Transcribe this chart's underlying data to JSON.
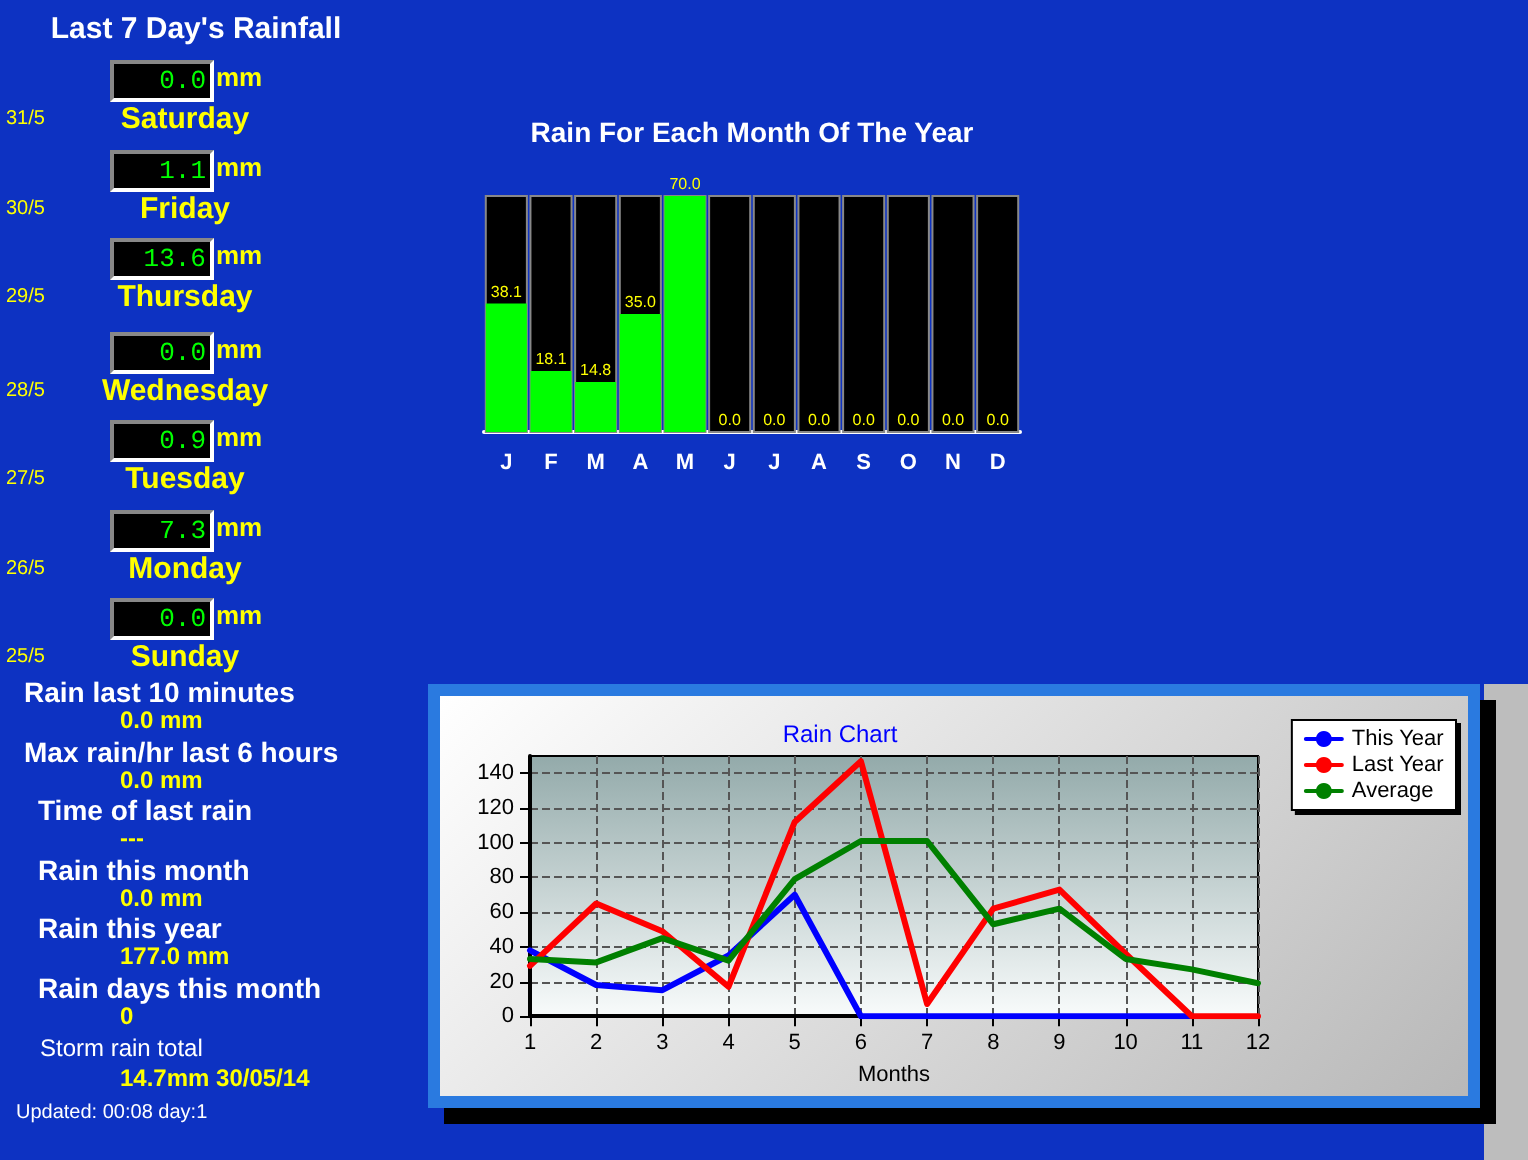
{
  "chart_data": [
    {
      "type": "other",
      "title": "Last 7 Day's Rainfall",
      "categories": [
        "Saturday",
        "Friday",
        "Thursday",
        "Wednesday",
        "Tuesday",
        "Monday",
        "Sunday"
      ],
      "value_labels": [
        "0.0",
        "1.1",
        "13.6",
        "0.0",
        "0.9",
        "7.3",
        "0.0"
      ],
      "annotations": [
        "31/5",
        "30/5",
        "29/5",
        "28/5",
        "27/5",
        "26/5",
        "25/5"
      ],
      "ylabel": "mm"
    },
    {
      "type": "bar",
      "title": "Rain For Each Month Of The Year",
      "categories": [
        "J",
        "F",
        "M",
        "A",
        "M",
        "J",
        "J",
        "A",
        "S",
        "O",
        "N",
        "D"
      ],
      "values": [
        38.1,
        18.1,
        14.8,
        35.0,
        70.0,
        0,
        0,
        0,
        0,
        0,
        0,
        0
      ],
      "value_labels": [
        "38.1",
        "18.1",
        "14.8",
        "35.0",
        "70.0",
        "0.0",
        "0.0",
        "0.0",
        "0.0",
        "0.0",
        "0.0",
        "0.0"
      ],
      "color": "#00ff00"
    },
    {
      "type": "line",
      "title": "Rain Chart",
      "xlabel": "Months",
      "x": [
        1,
        2,
        3,
        4,
        5,
        6,
        7,
        8,
        9,
        10,
        11,
        12
      ],
      "xlim": [
        1,
        12
      ],
      "xticks": [
        1,
        2,
        3,
        4,
        5,
        6,
        7,
        8,
        9,
        10,
        11,
        12
      ],
      "ylim": [
        0,
        150
      ],
      "yticks": [
        0,
        20,
        40,
        60,
        80,
        100,
        120,
        140
      ],
      "grid": true,
      "legend": "top right",
      "marker": "none",
      "line_style": "solid",
      "series": [
        {
          "name": "This Year",
          "color": "#0000ff",
          "values": [
            38,
            18,
            15,
            35,
            70,
            0,
            0,
            0,
            0,
            0,
            0,
            null
          ]
        },
        {
          "name": "Last Year",
          "color": "#ff0000",
          "values": [
            29,
            65,
            49,
            17,
            112,
            147,
            7,
            62,
            73,
            36,
            0,
            0
          ]
        },
        {
          "name": "Average",
          "color": "#008000",
          "values": [
            33,
            31,
            45,
            32,
            79,
            101,
            101,
            53,
            62,
            33,
            27,
            19
          ]
        }
      ]
    },
    {
      "type": "other",
      "annotations": [
        "Rain last 10 minutes",
        "0.0 mm",
        "Max rain/hr last 6 hours",
        "0.0 mm",
        "Time of last rain",
        "---",
        "Rain this month",
        "0.0 mm",
        "Rain this year",
        "177.0 mm",
        "Rain days this month",
        "0",
        "Storm rain total",
        "14.7mm 30/05/14",
        "Updated: 00:08 day:1"
      ]
    }
  ]
}
